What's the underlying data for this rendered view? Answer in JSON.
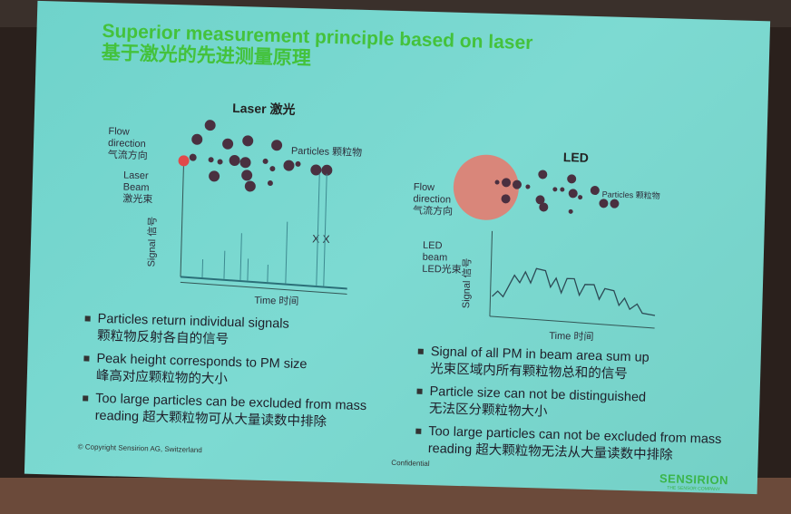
{
  "title_en": "Superior measurement principle based on laser",
  "title_zh": "基于激光的先进测量原理",
  "laser": {
    "heading": "Laser 激光",
    "flow_label": "Flow direction",
    "flow_label_zh": "气流方向",
    "beam_label": "Laser Beam",
    "beam_label_zh": "激光束",
    "particles_label": "Particles 颗粒物",
    "signal_label": "Signal",
    "signal_label_zh": "信号",
    "time_label": "Time 时间",
    "excluded_marks": "X X"
  },
  "led": {
    "heading": "LED",
    "flow_label": "Flow direction",
    "flow_label_zh": "气流方向",
    "beam_label": "LED beam",
    "beam_label_zh": "LED光束",
    "particles_label": "Particles 颗粒物",
    "signal_label": "Signal",
    "signal_label_zh": "信号",
    "time_label": "Time 时间"
  },
  "left_bullets": [
    {
      "en": "Particles return individual signals",
      "zh": "颗粒物反射各自的信号"
    },
    {
      "en": "Peak height corresponds to PM size",
      "zh": "峰高对应颗粒物的大小"
    },
    {
      "en": "Too large particles can be excluded from mass",
      "zh": "reading 超大颗粒物可从大量读数中排除"
    }
  ],
  "right_bullets": [
    {
      "en": "Signal of all PM in beam area sum up",
      "zh": "光束区域内所有颗粒物总和的信号"
    },
    {
      "en": "Particle size can not be distinguished",
      "zh": "无法区分颗粒物大小"
    },
    {
      "en": "Too large particles can not be excluded from mass",
      "zh": "reading 超大颗粒物无法从大量读数中排除"
    }
  ],
  "footer": {
    "copyright": "© Copyright Sensirion AG, Switzerland",
    "confidential": "Confidential",
    "logo": "SENSIRION",
    "logo_tagline": "THE SENSOR COMPANY"
  },
  "colors": {
    "title": "#44c23c",
    "slide_bg": "#74d4cb",
    "particle": "#4a3040",
    "laser": "#e04a4a",
    "led_beam": "#d9867a"
  }
}
